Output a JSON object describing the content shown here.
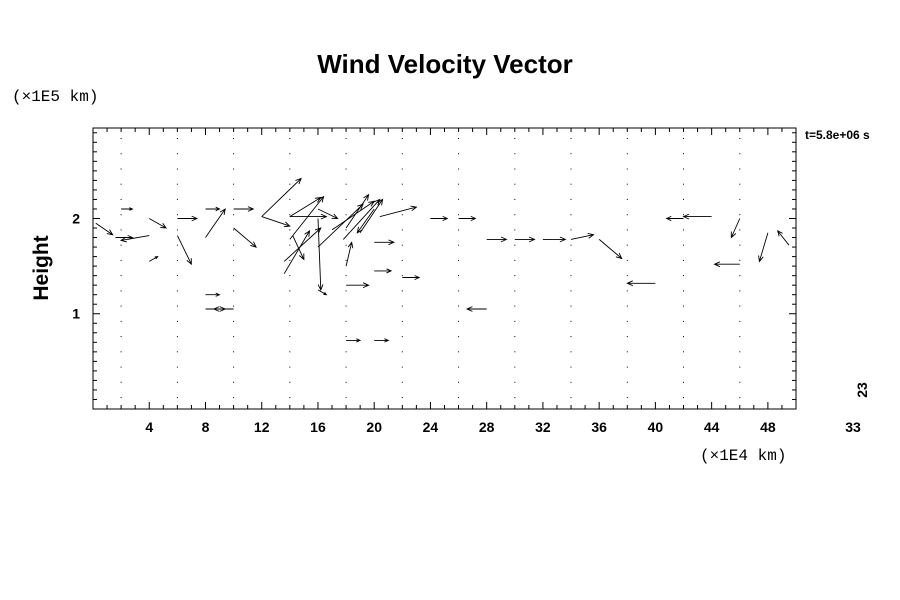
{
  "chart_data": {
    "type": "vector-field",
    "title": "Wind Velocity Vector",
    "ylabel": "Height",
    "y_unit": "(×1E5 km)",
    "x_unit": "(×1E4 km)",
    "time_label": "t=5.8e+06 s",
    "side_label": "23",
    "corner_label": "33",
    "xlim": [
      0,
      50
    ],
    "ylim": [
      0,
      2.95
    ],
    "x_ticks": [
      4,
      8,
      12,
      16,
      20,
      24,
      28,
      32,
      36,
      40,
      44,
      48
    ],
    "y_ticks": [
      1,
      2
    ],
    "grid": {
      "x": [
        2,
        6,
        10,
        14,
        18,
        22,
        26,
        30,
        34,
        38,
        42,
        46
      ],
      "y_start": 0.12,
      "y_step": 0.16,
      "y_count": 18
    },
    "vectors": [
      {
        "x": 0.2,
        "y": 1.95,
        "u": 1.2,
        "v": -0.12
      },
      {
        "x": 1.6,
        "y": 1.8,
        "u": 1.2,
        "v": 0
      },
      {
        "x": 2,
        "y": 2.1,
        "u": 0.8,
        "v": 0
      },
      {
        "x": 4,
        "y": 1.82,
        "u": -2.0,
        "v": -0.05
      },
      {
        "x": 4,
        "y": 2.0,
        "u": 1.2,
        "v": -0.1
      },
      {
        "x": 4,
        "y": 1.55,
        "u": 0.6,
        "v": 0.05
      },
      {
        "x": 6,
        "y": 2.0,
        "u": 1.4,
        "v": 0
      },
      {
        "x": 6,
        "y": 1.82,
        "u": 1.0,
        "v": -0.3
      },
      {
        "x": 8,
        "y": 2.1,
        "u": 1.0,
        "v": 0
      },
      {
        "x": 8,
        "y": 1.8,
        "u": 1.4,
        "v": 0.3
      },
      {
        "x": 8,
        "y": 1.2,
        "u": 1.0,
        "v": 0
      },
      {
        "x": 8,
        "y": 1.05,
        "u": 1.4,
        "v": 0
      },
      {
        "x": 10,
        "y": 2.1,
        "u": 1.4,
        "v": 0
      },
      {
        "x": 10,
        "y": 1.9,
        "u": 1.6,
        "v": -0.2
      },
      {
        "x": 10,
        "y": 1.05,
        "u": -1.4,
        "v": 0
      },
      {
        "x": 12,
        "y": 2.02,
        "u": 2.8,
        "v": 0.4
      },
      {
        "x": 12,
        "y": 2.02,
        "u": 2.0,
        "v": -0.1
      },
      {
        "x": 14,
        "y": 2.02,
        "u": 2.2,
        "v": 0.2
      },
      {
        "x": 14,
        "y": 2.02,
        "u": 2.6,
        "v": 0
      },
      {
        "x": 13.6,
        "y": 1.42,
        "u": 1.8,
        "v": 0.45
      },
      {
        "x": 13.6,
        "y": 1.55,
        "u": 2.6,
        "v": 0.35
      },
      {
        "x": 14,
        "y": 1.78,
        "u": 2.4,
        "v": 0.45
      },
      {
        "x": 14.2,
        "y": 1.82,
        "u": 0.8,
        "v": -0.25
      },
      {
        "x": 16,
        "y": 2.1,
        "u": 1.4,
        "v": -0.1
      },
      {
        "x": 16,
        "y": 2.0,
        "u": 0.2,
        "v": -0.75
      },
      {
        "x": 16,
        "y": 1.7,
        "u": 3.2,
        "v": 0.45
      },
      {
        "x": 16,
        "y": 1.25,
        "u": 0.6,
        "v": -0.05
      },
      {
        "x": 17,
        "y": 1.88,
        "u": 3.0,
        "v": 0.3
      },
      {
        "x": 17.8,
        "y": 1.78,
        "u": 2.6,
        "v": 0.42
      },
      {
        "x": 18,
        "y": 1.9,
        "u": 1.6,
        "v": 0.35
      },
      {
        "x": 18,
        "y": 1.5,
        "u": 0.4,
        "v": 0.25
      },
      {
        "x": 18,
        "y": 1.3,
        "u": 1.6,
        "v": 0
      },
      {
        "x": 18,
        "y": 0.72,
        "u": 1.0,
        "v": 0
      },
      {
        "x": 19,
        "y": 1.85,
        "u": 1.6,
        "v": 0.35
      },
      {
        "x": 20,
        "y": 2.1,
        "u": -1.2,
        "v": -0.25
      },
      {
        "x": 20,
        "y": 1.75,
        "u": 1.4,
        "v": 0
      },
      {
        "x": 20,
        "y": 1.45,
        "u": 1.2,
        "v": 0
      },
      {
        "x": 20,
        "y": 0.72,
        "u": 1.0,
        "v": 0
      },
      {
        "x": 20.4,
        "y": 2.02,
        "u": 2.6,
        "v": 0.1
      },
      {
        "x": 22,
        "y": 1.38,
        "u": 1.2,
        "v": 0
      },
      {
        "x": 24,
        "y": 2.0,
        "u": 1.2,
        "v": 0
      },
      {
        "x": 26,
        "y": 2.0,
        "u": 1.2,
        "v": 0
      },
      {
        "x": 28,
        "y": 1.78,
        "u": 1.4,
        "v": 0
      },
      {
        "x": 28,
        "y": 1.05,
        "u": -1.4,
        "v": 0
      },
      {
        "x": 30,
        "y": 1.78,
        "u": 1.4,
        "v": 0
      },
      {
        "x": 32,
        "y": 1.78,
        "u": 1.6,
        "v": 0
      },
      {
        "x": 34,
        "y": 1.78,
        "u": 1.6,
        "v": 0.05
      },
      {
        "x": 36,
        "y": 1.78,
        "u": 1.6,
        "v": -0.2
      },
      {
        "x": 40,
        "y": 1.32,
        "u": -2.0,
        "v": 0
      },
      {
        "x": 42,
        "y": 2.0,
        "u": -1.2,
        "v": 0
      },
      {
        "x": 44,
        "y": 2.02,
        "u": -2.0,
        "v": 0
      },
      {
        "x": 46,
        "y": 1.52,
        "u": -1.8,
        "v": 0
      },
      {
        "x": 46,
        "y": 2.0,
        "u": -0.6,
        "v": -0.2
      },
      {
        "x": 48,
        "y": 1.85,
        "u": -0.6,
        "v": -0.3
      },
      {
        "x": 49.5,
        "y": 1.72,
        "u": -0.8,
        "v": 0.15
      }
    ]
  },
  "colors": {
    "background": "#ffffff",
    "foreground": "#000000"
  }
}
